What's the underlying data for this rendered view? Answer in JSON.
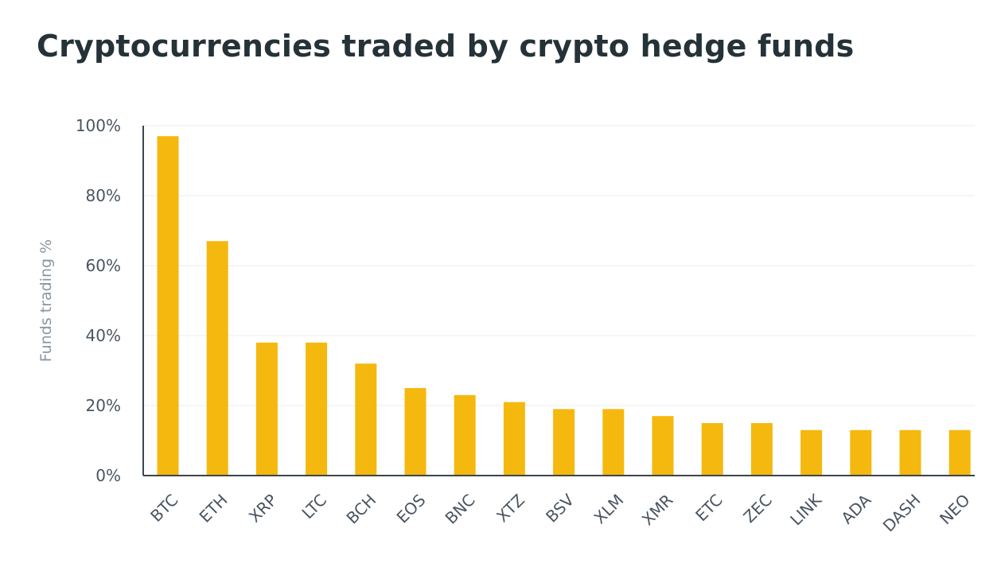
{
  "chart_data": {
    "type": "bar",
    "title": "Cryptocurrencies traded by crypto hedge funds",
    "xlabel": "",
    "ylabel": "Funds trading %",
    "categories": [
      "BTC",
      "ETH",
      "XRP",
      "LTC",
      "BCH",
      "EOS",
      "BNC",
      "XTZ",
      "BSV",
      "XLM",
      "XMR",
      "ETC",
      "ZEC",
      "LINK",
      "ADA",
      "DASH",
      "NEO"
    ],
    "values": [
      97,
      67,
      38,
      38,
      32,
      25,
      23,
      21,
      19,
      19,
      17,
      15,
      15,
      13,
      13,
      13,
      13
    ],
    "ylim": [
      0,
      100
    ],
    "yticks": [
      0,
      20,
      40,
      60,
      80,
      100
    ],
    "ytick_suffix": "%",
    "grid": true,
    "bar_color": "#f5b80e",
    "grid_color": "#ececec",
    "axis_color": "#3a4650"
  }
}
